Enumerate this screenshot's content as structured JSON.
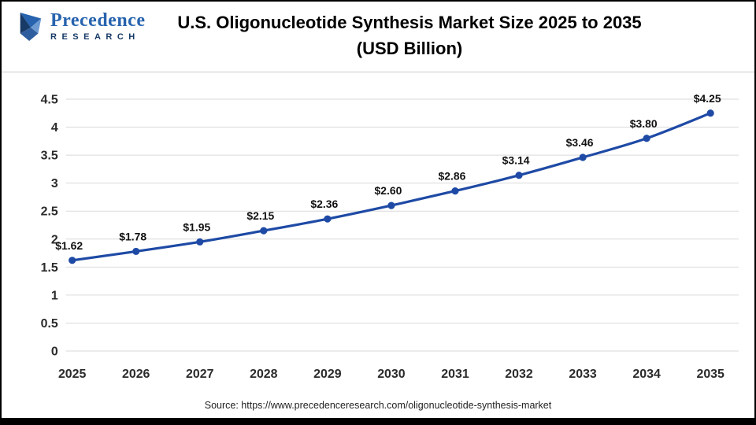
{
  "header": {
    "logo": {
      "name": "Precedence",
      "subname": "RESEARCH"
    },
    "title_line1": "U.S. Oligonucleotide Synthesis Market Size 2025 to 2035",
    "title_line2": "(USD Billion)"
  },
  "chart_data": {
    "type": "line",
    "title": "U.S. Oligonucleotide Synthesis Market Size 2025 to 2035 (USD Billion)",
    "categories": [
      "2025",
      "2026",
      "2027",
      "2028",
      "2029",
      "2030",
      "2031",
      "2032",
      "2033",
      "2034",
      "2035"
    ],
    "values": [
      1.62,
      1.78,
      1.95,
      2.15,
      2.36,
      2.6,
      2.86,
      3.14,
      3.46,
      3.8,
      4.25
    ],
    "point_labels": [
      "$1.62",
      "$1.78",
      "$1.95",
      "$2.15",
      "$2.36",
      "$2.60",
      "$2.86",
      "$3.14",
      "$3.46",
      "$3.80",
      "$4.25"
    ],
    "xlabel": "",
    "ylabel": "",
    "ylim": [
      0,
      4.5
    ],
    "yticks": [
      0,
      0.5,
      1,
      1.5,
      2,
      2.5,
      3,
      3.5,
      4,
      4.5
    ],
    "grid": true,
    "legend": "none",
    "line_color": "#1e4aa5",
    "marker_color": "#1e4aa5"
  },
  "footer": {
    "source": "Source: https://www.precedenceresearch.com/oligonucleotide-synthesis-market"
  },
  "colors": {
    "logo_blue": "#2763ae",
    "logo_navy": "#173a66",
    "frame_border": "#000000"
  }
}
